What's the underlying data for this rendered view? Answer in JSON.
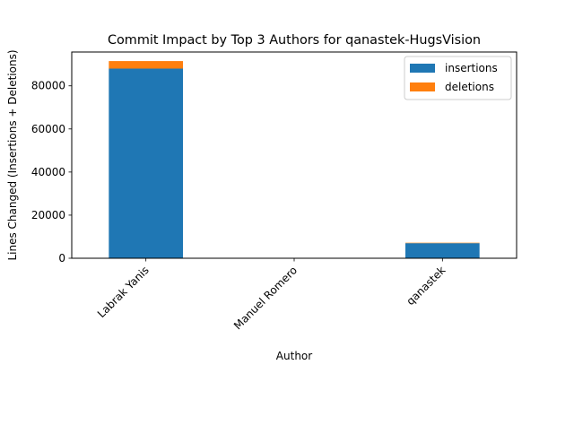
{
  "chart_data": {
    "type": "bar",
    "stacked": true,
    "title": "Commit Impact by Top 3 Authors for qanastek-HugsVision",
    "xlabel": "Author",
    "ylabel": "Lines Changed (Insertions + Deletions)",
    "categories": [
      "Labrak Yanis",
      "Manuel Romero",
      "qanastek"
    ],
    "series": [
      {
        "name": "insertions",
        "color": "#1f77b4",
        "values": [
          88000,
          2,
          7000
        ]
      },
      {
        "name": "deletions",
        "color": "#ff7f0e",
        "values": [
          3500,
          2,
          200
        ]
      }
    ],
    "ylim": [
      0,
      95700
    ],
    "yticks": [
      0,
      20000,
      40000,
      60000,
      80000
    ],
    "ytick_labels": [
      "0",
      "20000",
      "40000",
      "60000",
      "80000"
    ],
    "xtick_rotation": 45,
    "legend_position": "top-right",
    "grid": false
  }
}
